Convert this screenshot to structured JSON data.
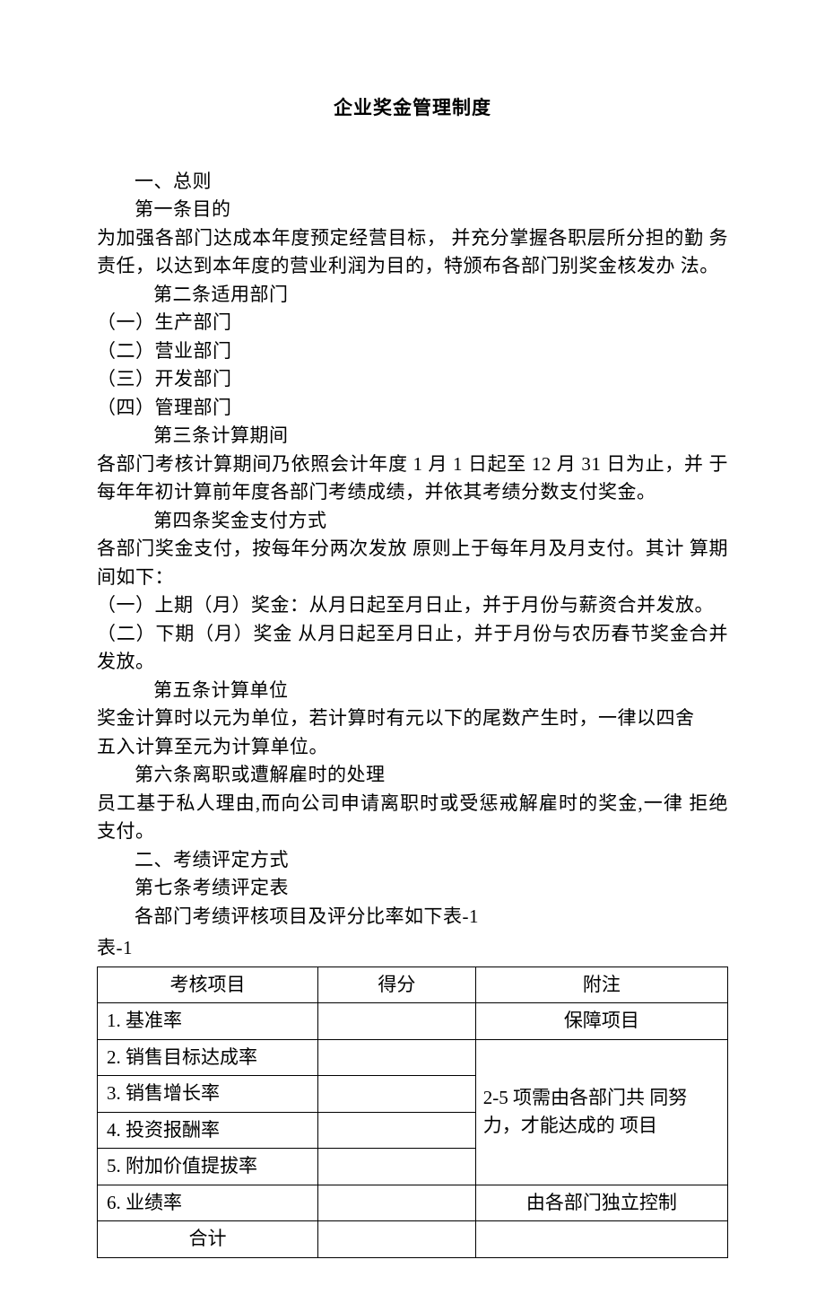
{
  "title": "企业奖金管理制度",
  "sections": {
    "s1_heading": "一、总则",
    "a1_heading": "第一条目的",
    "a1_body": "为加强各部门达成本年度预定经营目标， 并充分掌握各职层所分担的勤 务责任，以达到本年度的营业利润为目的，特颁布各部门别奖金核发办 法。",
    "a2_heading": "第二条适用部门",
    "a2_items": {
      "i1": "（一）生产部门",
      "i2": "（二）营业部门",
      "i3": "（三）开发部门",
      "i4": "（四）管理部门"
    },
    "a3_heading": "第三条计算期间",
    "a3_body": "各部门考核计算期间乃依照会计年度 1 月 1 日起至 12 月 31 日为止，并 于每年年初计算前年度各部门考绩成绩，并依其考绩分数支付奖金。",
    "a4_heading": "第四条奖金支付方式",
    "a4_body": "各部门奖金支付，按每年分两次发放 原则上于每年月及月支付。其计 算期间如下：",
    "a4_items": {
      "i1": "（一）上期（月）奖金：从月日起至月日止，并于月份与薪资合并发放。",
      "i2": "（二）下期（月）奖金 从月日起至月日止，并于月份与农历春节奖金合并 发放。"
    },
    "a5_heading": "第五条计算单位",
    "a5_body1": "奖金计算时以元为单位，若计算时有元以下的尾数产生时，一律以四舍",
    "a5_body2": "五入计算至元为计算单位。",
    "a6_heading": "第六条离职或遭解雇时的处理",
    "a6_body": "员工基于私人理由,而向公司申请离职时或受惩戒解雇时的奖金,一律 拒绝支付。",
    "s2_heading": "二、考绩评定方式",
    "a7_heading": "第七条考绩评定表",
    "a7_body": "各部门考绩评核项目及评分比率如下表-1",
    "table_label": "表-1"
  },
  "table": {
    "headers": {
      "h1": "考核项目",
      "h2": "得分",
      "h3": "附注"
    },
    "rows": {
      "r1": {
        "c1": "1. 基准率",
        "c2": "",
        "c3": "保障项目"
      },
      "r2": {
        "c1": "2. 销售目标达成率",
        "c2": ""
      },
      "r3": {
        "c1": "3. 销售增长率",
        "c2": ""
      },
      "r4": {
        "c1": "4. 投资报酬率",
        "c2": ""
      },
      "r5": {
        "c1": "5. 附加价值提拔率",
        "c2": ""
      },
      "merged_note": "2-5 项需由各部门共 同努力，才能达成的 项目",
      "r6": {
        "c1": "6. 业绩率",
        "c2": "",
        "c3": "由各部门独立控制"
      },
      "total": {
        "c1": "合计",
        "c2": "",
        "c3": ""
      }
    }
  }
}
